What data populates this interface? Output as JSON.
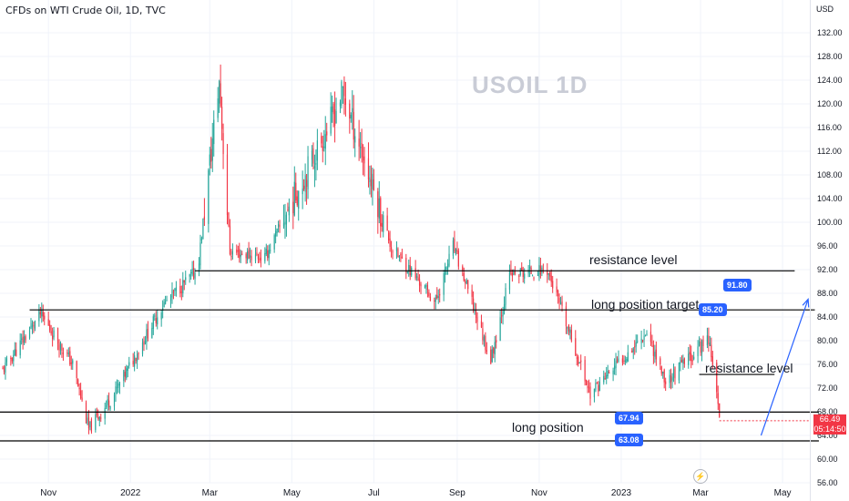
{
  "header": {
    "title": "CFDs on WTI Crude Oil, 1D, TVC",
    "currency": "USD",
    "watermark": "USOIL  1D"
  },
  "last_price": {
    "price": "66.49",
    "countdown": "05:14:50"
  },
  "colors": {
    "up": "#26a69a",
    "down": "#f23645",
    "line": "#000000",
    "badge": "#2962ff",
    "arrow": "#2962ff"
  },
  "annotations": {
    "resistance_top": "resistance level",
    "long_target": "long position target",
    "resistance_right": "resistance level",
    "long_position": "long position"
  },
  "badges": {
    "b9180": "91.80",
    "b8520": "85.20",
    "b6794": "67.94",
    "b6308": "63.08"
  },
  "icons": {
    "replay": "lightning-icon"
  },
  "chart_data": {
    "type": "candlestick",
    "title": "CFDs on WTI Crude Oil, 1D, TVC",
    "ylim": [
      56,
      134
    ],
    "y_ticks": [
      "56.00",
      "60.00",
      "64.00",
      "68.00",
      "72.00",
      "76.00",
      "80.00",
      "84.00",
      "88.00",
      "92.00",
      "96.00",
      "100.00",
      "104.00",
      "108.00",
      "112.00",
      "116.00",
      "120.00",
      "124.00",
      "128.00",
      "132.00"
    ],
    "x_ticks": [
      "Nov",
      "2022",
      "Mar",
      "May",
      "Jul",
      "Sep",
      "Nov",
      "2023",
      "Mar",
      "May"
    ],
    "approx_close_path": [
      {
        "date": "2021-09-28",
        "close": 75
      },
      {
        "date": "2021-10-26",
        "close": 84.5
      },
      {
        "date": "2021-11-19",
        "close": 76
      },
      {
        "date": "2021-12-01",
        "close": 65
      },
      {
        "date": "2021-12-20",
        "close": 71
      },
      {
        "date": "2022-01-25",
        "close": 86
      },
      {
        "date": "2022-02-20",
        "close": 92
      },
      {
        "date": "2022-03-08",
        "close": 123.7
      },
      {
        "date": "2022-03-16",
        "close": 95
      },
      {
        "date": "2022-04-11",
        "close": 94
      },
      {
        "date": "2022-05-30",
        "close": 117
      },
      {
        "date": "2022-06-08",
        "close": 122.1
      },
      {
        "date": "2022-07-14",
        "close": 95.8
      },
      {
        "date": "2022-08-16",
        "close": 86.5
      },
      {
        "date": "2022-08-29",
        "close": 96
      },
      {
        "date": "2022-09-26",
        "close": 76.7
      },
      {
        "date": "2022-10-10",
        "close": 91.1
      },
      {
        "date": "2022-11-07",
        "close": 92
      },
      {
        "date": "2022-12-09",
        "close": 71
      },
      {
        "date": "2023-01-20",
        "close": 81.6
      },
      {
        "date": "2023-02-03",
        "close": 73
      },
      {
        "date": "2023-03-07",
        "close": 80.5
      },
      {
        "date": "2023-03-10",
        "close": 76.7
      },
      {
        "date": "2023-03-15",
        "close": 66.49
      }
    ],
    "horizontal_levels": [
      {
        "value": 91.8,
        "label": "resistance level"
      },
      {
        "value": 85.2,
        "label": "long position target"
      },
      {
        "value": 74.3,
        "label": "resistance level"
      },
      {
        "value": 67.94,
        "label": ""
      },
      {
        "value": 63.08,
        "label": "long position"
      }
    ],
    "projection_arrow": {
      "from": {
        "date": "2023-04-15",
        "value": 64
      },
      "to": {
        "date": "2023-05-20",
        "value": 87
      }
    },
    "grid": true,
    "legend": "none"
  }
}
